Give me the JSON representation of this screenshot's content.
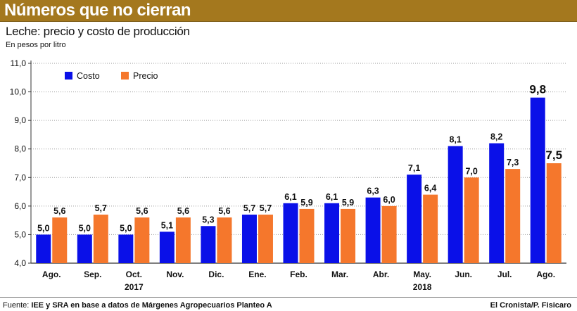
{
  "header": {
    "title": "Números que no cierran",
    "subtitle": "Leche: precio y costo de producción",
    "unit": "En pesos por litro"
  },
  "footer": {
    "source_label": "Fuente:",
    "source_text": "IEE y SRA en base a datos de Márgenes Agropecuarios Planteo A",
    "credit": "El Cronista/P. Fisicaro"
  },
  "colors": {
    "title_bar": "#a4781e",
    "costo": "#0a10e8",
    "precio": "#f5772c"
  },
  "chart_data": {
    "type": "bar",
    "title": "Leche: precio y costo de producción",
    "ylabel": "En pesos por litro",
    "xlabel": "",
    "ylim": [
      4.0,
      11.0
    ],
    "yticks": [
      4.0,
      5.0,
      6.0,
      7.0,
      8.0,
      9.0,
      10.0,
      11.0
    ],
    "ytick_labels": [
      "4,0",
      "5,0",
      "6,0",
      "7,0",
      "8,0",
      "9,0",
      "10,0",
      "11,0"
    ],
    "grid": true,
    "legend": "top-left",
    "categories": [
      "Ago.",
      "Sep.",
      "Oct.",
      "Nov.",
      "Dic.",
      "Ene.",
      "Feb.",
      "Mar.",
      "Abr.",
      "May.",
      "Jun.",
      "Jul.",
      "Ago."
    ],
    "year_labels": [
      {
        "label": "2017",
        "category_index": 2
      },
      {
        "label": "2018",
        "category_index": 9
      }
    ],
    "series": [
      {
        "name": "Costo",
        "color": "#0a10e8",
        "values": [
          5.0,
          5.0,
          5.0,
          5.1,
          5.3,
          5.7,
          6.1,
          6.1,
          6.3,
          7.1,
          8.1,
          8.2,
          9.8
        ],
        "labels": [
          "5,0",
          "5,0",
          "5,0",
          "5,1",
          "5,3",
          "5,7",
          "6,1",
          "6,1",
          "6,3",
          "7,1",
          "8,1",
          "8,2",
          "9,8"
        ]
      },
      {
        "name": "Precio",
        "color": "#f5772c",
        "values": [
          5.6,
          5.7,
          5.6,
          5.6,
          5.6,
          5.7,
          5.9,
          5.9,
          6.0,
          6.4,
          7.0,
          7.3,
          7.5
        ],
        "labels": [
          "5,6",
          "5,7",
          "5,6",
          "5,6",
          "5,6",
          "5,7",
          "5,9",
          "5,9",
          "6,0",
          "6,4",
          "7,0",
          "7,3",
          "7,5"
        ]
      }
    ],
    "highlight_last": true
  }
}
